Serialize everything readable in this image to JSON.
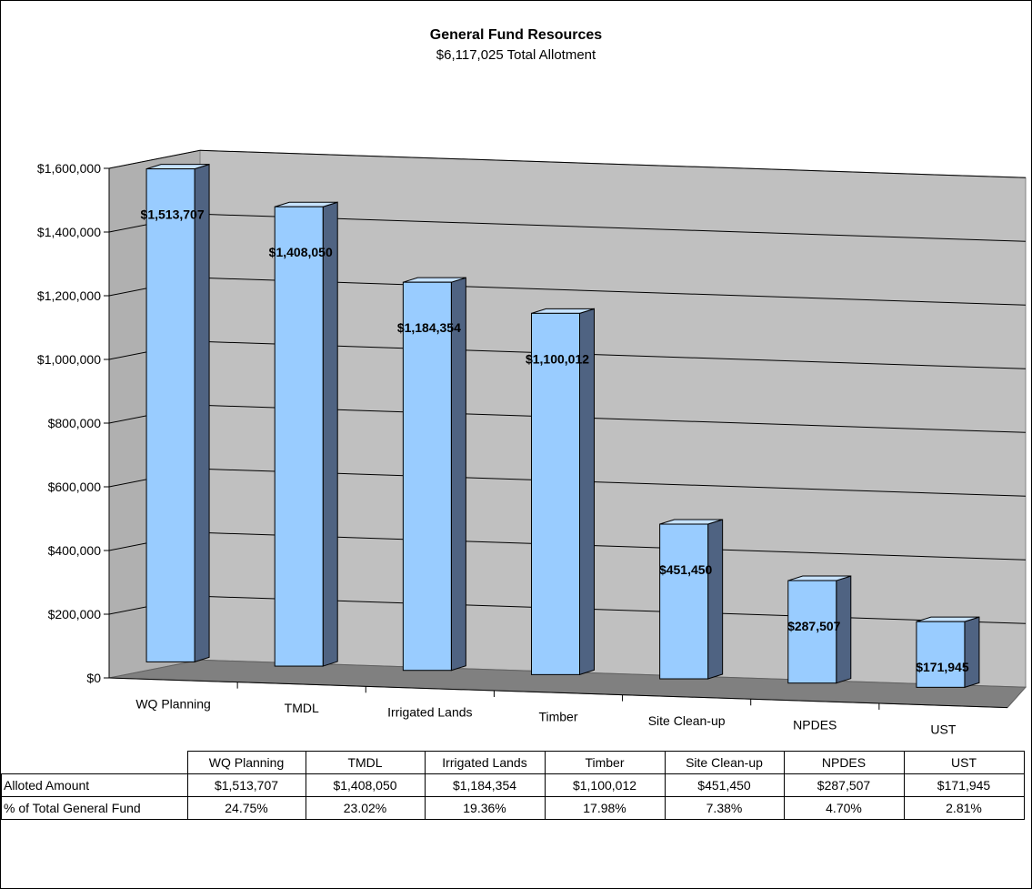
{
  "chart_data": {
    "type": "bar",
    "title": "General Fund Resources",
    "subtitle": "$6,117,025 Total Allotment",
    "categories": [
      "WQ Planning",
      "TMDL",
      "Irrigated Lands",
      "Timber",
      "Site Clean-up",
      "NPDES",
      "UST"
    ],
    "values": [
      1513707,
      1408050,
      1184354,
      1100012,
      451450,
      287507,
      171945
    ],
    "data_labels": [
      "$1,513,707",
      "$1,408,050",
      "$1,184,354",
      "$1,100,012",
      "$451,450",
      "$287,507",
      "$171,945"
    ],
    "ylim": [
      0,
      1600000
    ],
    "yticks": [
      0,
      200000,
      400000,
      600000,
      800000,
      1000000,
      1200000,
      1400000,
      1600000
    ],
    "ytick_labels": [
      "$0",
      "$200,000",
      "$400,000",
      "$600,000",
      "$800,000",
      "$1,000,000",
      "$1,200,000",
      "$1,400,000",
      "$1,600,000"
    ],
    "xlabel": "",
    "ylabel": "",
    "grid": true,
    "legend": "none",
    "colors": {
      "bar_front": "#99ccff",
      "bar_side": "#4f6382",
      "back_wall": "#c0c0c0",
      "floor": "#808080"
    }
  },
  "table": {
    "rows": [
      {
        "label": "Alloted Amount",
        "cells": [
          "$1,513,707",
          "$1,408,050",
          "$1,184,354",
          "$1,100,012",
          "$451,450",
          "$287,507",
          "$171,945"
        ]
      },
      {
        "label": "% of Total General Fund",
        "cells": [
          "24.75%",
          "23.02%",
          "19.36%",
          "17.98%",
          "7.38%",
          "4.70%",
          "2.81%"
        ]
      }
    ]
  }
}
